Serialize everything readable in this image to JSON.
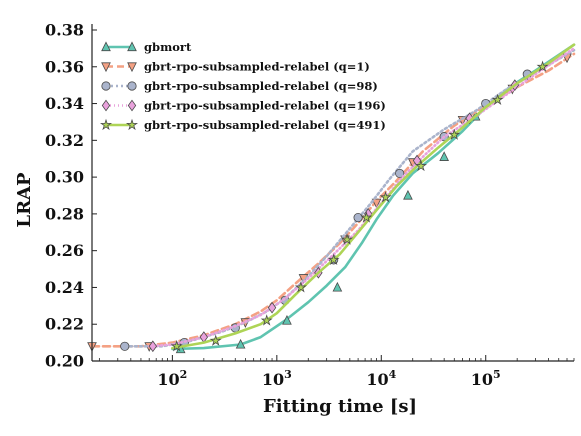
{
  "chart_data": {
    "type": "line",
    "xlabel": "Fitting time [s]",
    "ylabel": "LRAP",
    "xscale": "log",
    "xlim": [
      17,
      700000
    ],
    "ylim": [
      0.2,
      0.38
    ],
    "grid": false,
    "legend_position": "top-left",
    "x_ticks": [
      {
        "value": 100,
        "base": "10",
        "exp": "2"
      },
      {
        "value": 1000,
        "base": "10",
        "exp": "3"
      },
      {
        "value": 10000,
        "base": "10",
        "exp": "4"
      },
      {
        "value": 100000,
        "base": "10",
        "exp": "5"
      }
    ],
    "y_ticks": [
      "0.20",
      "0.22",
      "0.24",
      "0.26",
      "0.28",
      "0.30",
      "0.32",
      "0.34",
      "0.36",
      "0.38"
    ],
    "series": [
      {
        "name": "gbmort",
        "color": "#5fc4b0",
        "dash": "",
        "width": 2.6,
        "marker": "triangle-up",
        "x": [
          100,
          200,
          450,
          700,
          1200,
          2000,
          3000,
          4500,
          6500,
          9000,
          13000,
          20000,
          35000,
          60000,
          100000,
          180000,
          300000,
          700000
        ],
        "y": [
          0.2065,
          0.207,
          0.209,
          0.213,
          0.222,
          0.232,
          0.241,
          0.251,
          0.264,
          0.277,
          0.29,
          0.302,
          0.313,
          0.325,
          0.338,
          0.35,
          0.358,
          0.372
        ],
        "marker_x": [
          120,
          450,
          1250,
          3800,
          18000,
          40000,
          80000,
          250000
        ],
        "marker_y": [
          0.2065,
          0.209,
          0.222,
          0.24,
          0.29,
          0.311,
          0.333,
          0.355
        ]
      },
      {
        "name": "gbrt-rpo-subsampled-relabel (q=1)",
        "color": "#f4a184",
        "dash": "7,4",
        "width": 2.6,
        "marker": "triangle-down",
        "x": [
          17,
          50,
          100,
          200,
          400,
          700,
          1000,
          1500,
          2500,
          4000,
          6000,
          9000,
          14000,
          25000,
          50000,
          100000,
          200000,
          400000,
          700000
        ],
        "y": [
          0.208,
          0.208,
          0.21,
          0.214,
          0.22,
          0.227,
          0.233,
          0.242,
          0.253,
          0.264,
          0.275,
          0.287,
          0.298,
          0.314,
          0.328,
          0.339,
          0.349,
          0.358,
          0.367
        ],
        "marker_x": [
          17,
          60,
          500,
          1800,
          4500,
          9000,
          20000,
          60000,
          180000,
          600000
        ],
        "marker_y": [
          0.208,
          0.208,
          0.221,
          0.245,
          0.266,
          0.286,
          0.308,
          0.331,
          0.348,
          0.365
        ]
      },
      {
        "name": "gbrt-rpo-subsampled-relabel (q=98)",
        "color": "#aab4cc",
        "dash": "2,3",
        "width": 2.6,
        "marker": "circle",
        "x": [
          35,
          80,
          150,
          300,
          500,
          800,
          1200,
          2000,
          3000,
          5000,
          8000,
          12000,
          20000,
          40000,
          80000,
          160000,
          300000,
          700000
        ],
        "y": [
          0.208,
          0.208,
          0.211,
          0.216,
          0.221,
          0.227,
          0.234,
          0.246,
          0.257,
          0.272,
          0.286,
          0.299,
          0.314,
          0.326,
          0.336,
          0.348,
          0.357,
          0.369
        ],
        "marker_x": [
          35,
          130,
          400,
          1200,
          3500,
          6000,
          15000,
          40000,
          100000,
          250000
        ],
        "marker_y": [
          0.208,
          0.21,
          0.218,
          0.233,
          0.255,
          0.278,
          0.302,
          0.322,
          0.34,
          0.356
        ]
      },
      {
        "name": "gbrt-rpo-subsampled-relabel (q=196)",
        "color": "#e9a2dc",
        "dash": "1,3",
        "width": 2.6,
        "marker": "diamond",
        "x": [
          60,
          100,
          200,
          400,
          700,
          1200,
          2000,
          3500,
          6000,
          10000,
          16000,
          25000,
          40000,
          80000,
          150000,
          300000,
          700000
        ],
        "y": [
          0.208,
          0.209,
          0.213,
          0.219,
          0.225,
          0.234,
          0.245,
          0.258,
          0.271,
          0.286,
          0.3,
          0.311,
          0.322,
          0.333,
          0.344,
          0.356,
          0.37
        ],
        "marker_x": [
          65,
          200,
          900,
          2500,
          7500,
          22000,
          70000,
          190000
        ],
        "marker_y": [
          0.208,
          0.213,
          0.229,
          0.248,
          0.28,
          0.309,
          0.332,
          0.35
        ]
      },
      {
        "name": "gbrt-rpo-subsampled-relabel (q=491)",
        "color": "#aed456",
        "dash": "",
        "width": 2.6,
        "marker": "star",
        "x": [
          100,
          200,
          400,
          700,
          1000,
          1500,
          2500,
          4000,
          6000,
          9000,
          14000,
          22000,
          35000,
          60000,
          100000,
          200000,
          400000,
          700000
        ],
        "y": [
          0.207,
          0.21,
          0.215,
          0.22,
          0.226,
          0.236,
          0.248,
          0.258,
          0.27,
          0.282,
          0.295,
          0.306,
          0.316,
          0.327,
          0.338,
          0.351,
          0.362,
          0.372
        ],
        "marker_x": [
          110,
          260,
          800,
          1700,
          3500,
          4700,
          7200,
          11000,
          24000,
          50000,
          130000,
          350000
        ],
        "marker_y": [
          0.208,
          0.211,
          0.222,
          0.24,
          0.255,
          0.266,
          0.278,
          0.289,
          0.306,
          0.323,
          0.342,
          0.36
        ]
      }
    ]
  }
}
